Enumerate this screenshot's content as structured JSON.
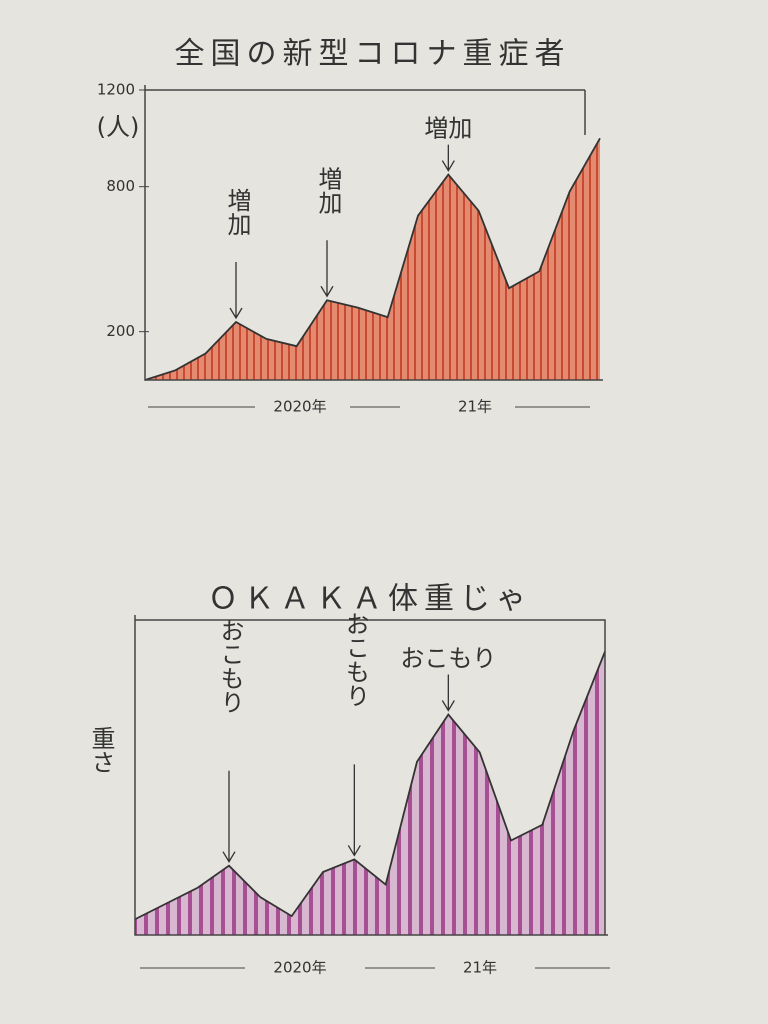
{
  "chart_data": [
    {
      "type": "area",
      "title": "全国の新型コロナ重症者",
      "y_label": "(人)",
      "x_labels": [
        "2020年",
        "21年"
      ],
      "values": [
        0,
        40,
        110,
        240,
        170,
        140,
        330,
        300,
        260,
        680,
        850,
        700,
        380,
        450,
        780,
        1000
      ],
      "color": "#d8684c",
      "ylim": [
        0,
        1200
      ],
      "yticks": [
        200,
        800,
        1200
      ],
      "annotations": [
        "増加",
        "増加",
        "増加"
      ]
    },
    {
      "type": "area",
      "title": "ＯＫＡＫＡ体重じゃ",
      "y_label": "重さ",
      "x_labels": [
        "2020年",
        "21年"
      ],
      "values": [
        5,
        10,
        15,
        22,
        12,
        6,
        20,
        24,
        16,
        55,
        70,
        58,
        30,
        35,
        65,
        90
      ],
      "color": "#a64f92",
      "ylim": [
        0,
        100
      ],
      "annotations": [
        "おこもり",
        "おこもり",
        "おこもり"
      ]
    }
  ]
}
